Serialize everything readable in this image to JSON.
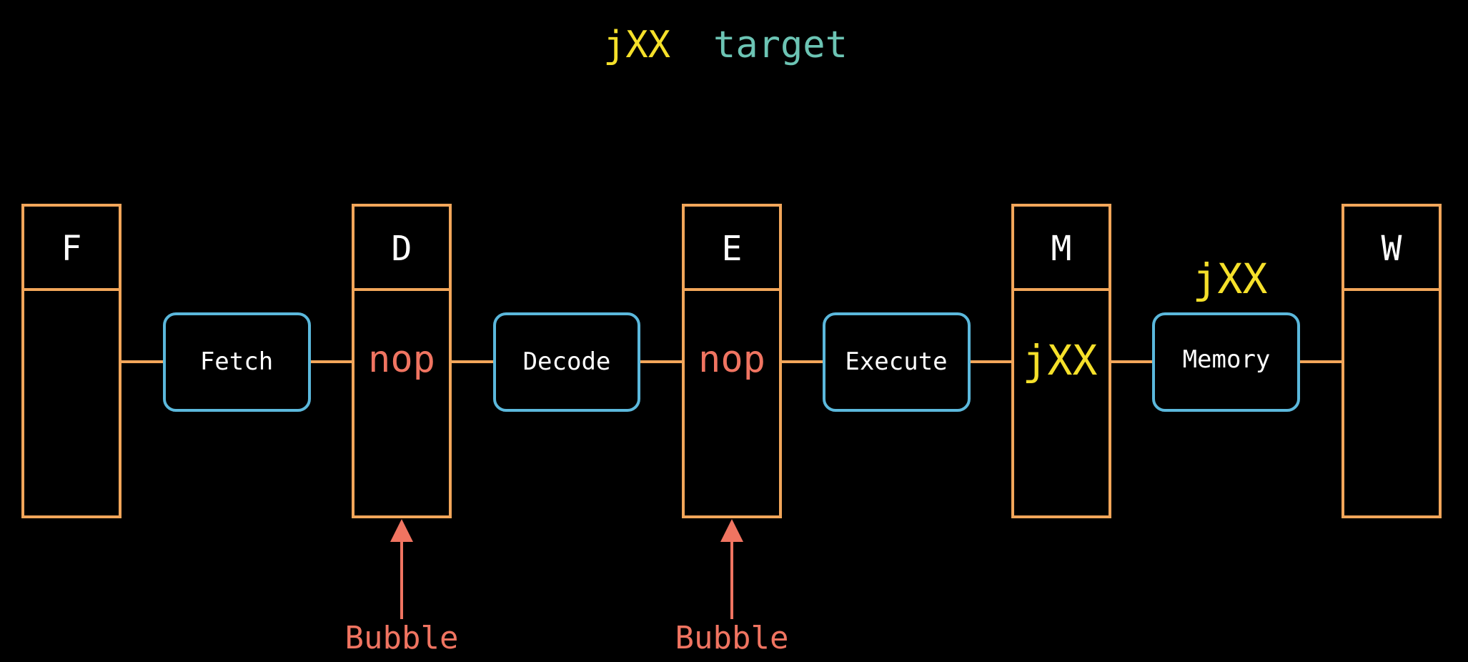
{
  "title": {
    "instruction": "jXX",
    "operand": "target"
  },
  "colors": {
    "background": "#000000",
    "register": "#F2A65A",
    "stage": "#5BB8DC",
    "instruction": "#F5E02A",
    "operand": "#6CC4B4",
    "bubble": "#F07461",
    "text": "#FFFFFF"
  },
  "registers": [
    {
      "name": "F",
      "content": ""
    },
    {
      "name": "D",
      "content": "nop"
    },
    {
      "name": "E",
      "content": "nop"
    },
    {
      "name": "M",
      "content": "jXX"
    },
    {
      "name": "W",
      "content": ""
    }
  ],
  "stages": [
    {
      "label": "Fetch",
      "annotation": ""
    },
    {
      "label": "Decode",
      "annotation": ""
    },
    {
      "label": "Execute",
      "annotation": ""
    },
    {
      "label": "Memory",
      "annotation": "jXX"
    }
  ],
  "bubbles": [
    {
      "label": "Bubble",
      "target": "D"
    },
    {
      "label": "Bubble",
      "target": "E"
    }
  ]
}
